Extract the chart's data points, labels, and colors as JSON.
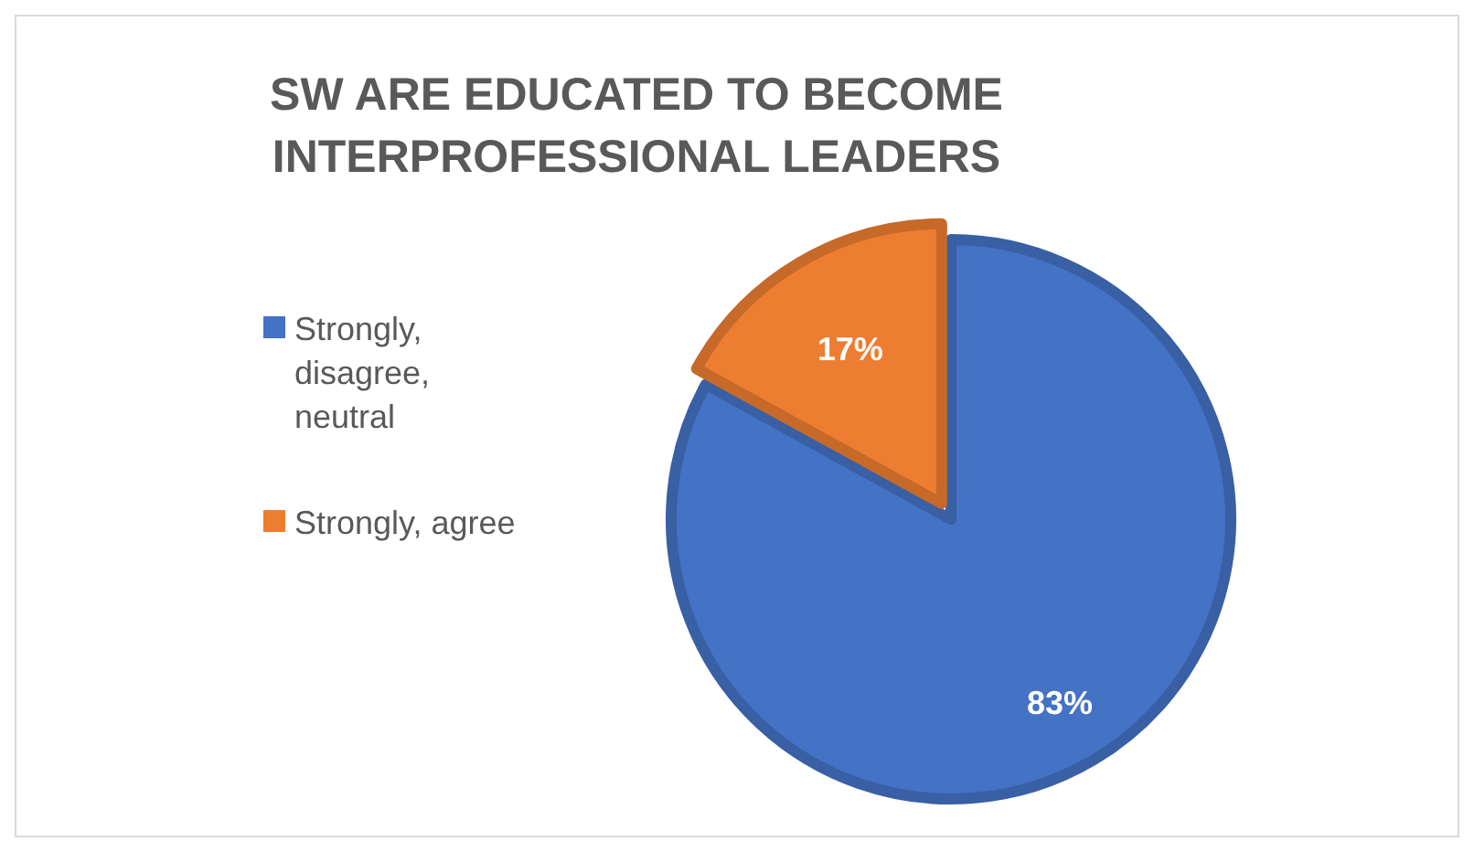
{
  "chart_data": {
    "type": "pie",
    "title": "SW ARE EDUCATED TO BECOME INTERPROFESSIONAL LEADERS",
    "categories": [
      "Strongly, disagree, neutral",
      "Strongly, agree"
    ],
    "values": [
      83,
      17
    ],
    "colors": [
      "#4472c4",
      "#ed7d31"
    ],
    "value_labels": [
      "83%",
      "17%"
    ],
    "legend": "left"
  }
}
